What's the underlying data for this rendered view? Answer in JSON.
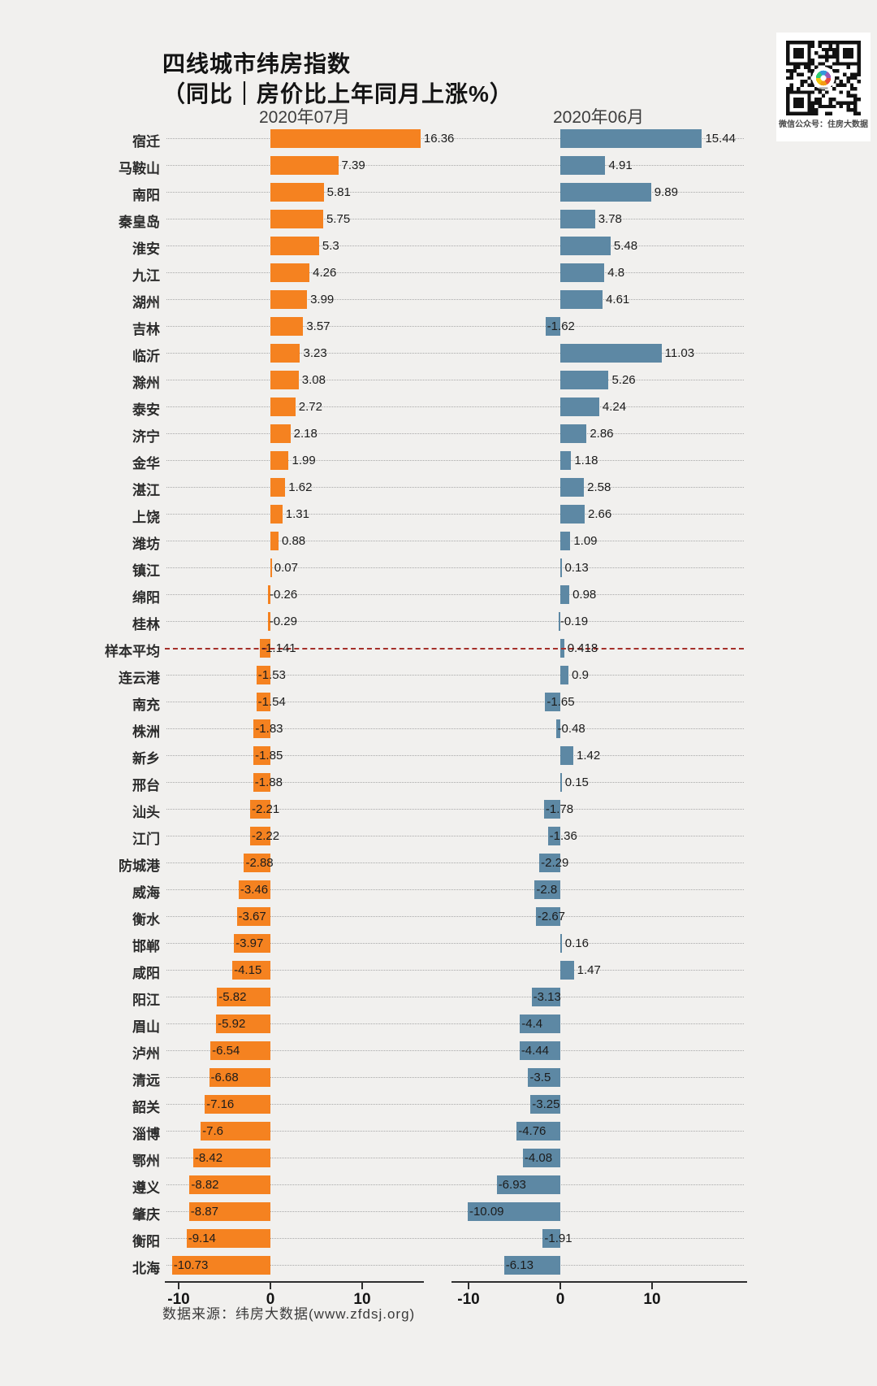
{
  "title": {
    "line1": "四线城市纬房指数",
    "line2": "（同比｜房价比上年同月上涨%）"
  },
  "panels": [
    {
      "label": "2020年07月",
      "color": "#f58220"
    },
    {
      "label": "2020年06月",
      "color": "#5d88a4"
    }
  ],
  "qr": {
    "caption": "微信公众号：住房大数据"
  },
  "footer": {
    "source": "数据来源：纬房大数据(www.zfdsj.org)"
  },
  "chart_data": {
    "type": "bar",
    "orientation": "horizontal",
    "title": "四线城市纬房指数（同比｜房价比上年同月上涨%）",
    "categories": [
      "宿迁",
      "马鞍山",
      "南阳",
      "秦皇岛",
      "淮安",
      "九江",
      "湖州",
      "吉林",
      "临沂",
      "滁州",
      "泰安",
      "济宁",
      "金华",
      "湛江",
      "上饶",
      "潍坊",
      "镇江",
      "绵阳",
      "桂林",
      "样本平均",
      "连云港",
      "南充",
      "株洲",
      "新乡",
      "邢台",
      "汕头",
      "江门",
      "防城港",
      "威海",
      "衡水",
      "邯郸",
      "咸阳",
      "阳江",
      "眉山",
      "泸州",
      "清远",
      "韶关",
      "淄博",
      "鄂州",
      "遵义",
      "肇庆",
      "衡阳",
      "北海"
    ],
    "series": [
      {
        "name": "2020年07月",
        "color": "#f58220",
        "values": [
          16.36,
          7.39,
          5.81,
          5.75,
          5.3,
          4.26,
          3.99,
          3.57,
          3.23,
          3.08,
          2.72,
          2.18,
          1.99,
          1.62,
          1.31,
          0.88,
          0.07,
          -0.26,
          -0.29,
          -1.141,
          -1.53,
          -1.54,
          -1.83,
          -1.85,
          -1.88,
          -2.21,
          -2.22,
          -2.88,
          -3.46,
          -3.67,
          -3.97,
          -4.15,
          -5.82,
          -5.92,
          -6.54,
          -6.68,
          -7.16,
          -7.6,
          -8.42,
          -8.82,
          -8.87,
          -9.14,
          -10.73
        ]
      },
      {
        "name": "2020年06月",
        "color": "#5d88a4",
        "values": [
          15.44,
          4.91,
          9.89,
          3.78,
          5.48,
          4.8,
          4.61,
          -1.62,
          11.03,
          5.26,
          4.24,
          2.86,
          1.18,
          2.58,
          2.66,
          1.09,
          0.13,
          0.98,
          -0.19,
          0.418,
          0.9,
          -1.65,
          -0.48,
          1.42,
          0.15,
          -1.78,
          -1.36,
          -2.29,
          -2.8,
          -2.67,
          0.16,
          1.47,
          -3.13,
          -4.4,
          -4.44,
          -3.5,
          -3.25,
          -4.76,
          -4.08,
          -6.93,
          -10.09,
          -1.91,
          -6.13
        ]
      }
    ],
    "reference_row": {
      "label": "样本平均",
      "index": 19,
      "line_style": "dashed",
      "line_color": "#a5302a"
    },
    "x_ticks": [
      "-10",
      "0",
      "10"
    ],
    "xlim": [
      -12,
      17
    ],
    "grid": "dotted row leaders",
    "legend_position": "panel headers above each chart half"
  }
}
